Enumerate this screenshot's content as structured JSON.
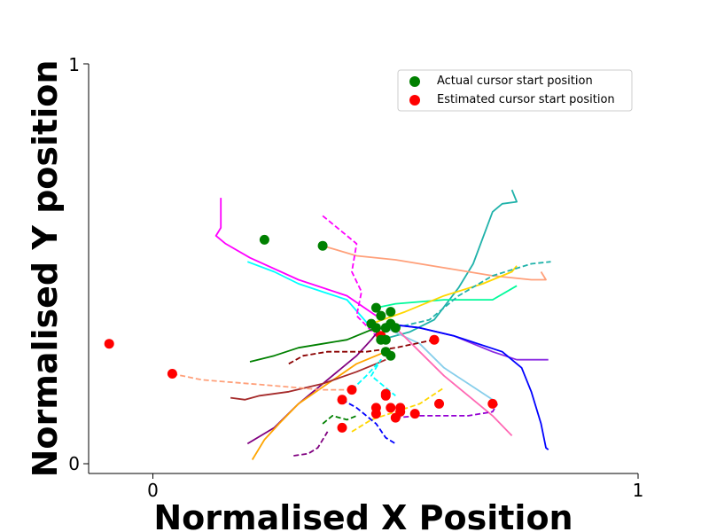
{
  "chart_data": {
    "type": "line",
    "title": "",
    "xlabel": "Normalised X Position",
    "ylabel": "Normalised Y position",
    "xlim": [
      -0.13,
      1
    ],
    "ylim": [
      -0.025,
      1
    ],
    "xticks": [
      "0",
      "1"
    ],
    "yticks": [
      "0",
      "1"
    ],
    "grid": false,
    "legend": {
      "placement": "top-right",
      "entries": [
        {
          "label": "Actual cursor start position",
          "color": "#008000"
        },
        {
          "label": "Estimated cursor start position",
          "color": "#ff0000"
        }
      ]
    },
    "actual_points": [
      [
        0.23,
        0.56
      ],
      [
        0.35,
        0.545
      ],
      [
        0.46,
        0.39
      ],
      [
        0.47,
        0.37
      ],
      [
        0.45,
        0.35
      ],
      [
        0.46,
        0.34
      ],
      [
        0.48,
        0.34
      ],
      [
        0.49,
        0.38
      ],
      [
        0.49,
        0.35
      ],
      [
        0.5,
        0.34
      ],
      [
        0.47,
        0.31
      ],
      [
        0.48,
        0.31
      ],
      [
        0.48,
        0.28
      ],
      [
        0.49,
        0.27
      ]
    ],
    "estimated_points": [
      [
        -0.09,
        0.3
      ],
      [
        0.04,
        0.225
      ],
      [
        0.41,
        0.185
      ],
      [
        0.39,
        0.16
      ],
      [
        0.48,
        0.175
      ],
      [
        0.46,
        0.14
      ],
      [
        0.49,
        0.14
      ],
      [
        0.51,
        0.14
      ],
      [
        0.51,
        0.13
      ],
      [
        0.46,
        0.125
      ],
      [
        0.5,
        0.115
      ],
      [
        0.54,
        0.125
      ],
      [
        0.59,
        0.15
      ],
      [
        0.7,
        0.15
      ],
      [
        0.39,
        0.09
      ],
      [
        0.58,
        0.31
      ],
      [
        0.48,
        0.17
      ],
      [
        0.47,
        0.32
      ]
    ],
    "series": [
      {
        "color": "#20b2aa",
        "style": "solid",
        "points": [
          [
            0.47,
            0.31
          ],
          [
            0.53,
            0.33
          ],
          [
            0.58,
            0.36
          ],
          [
            0.63,
            0.44
          ],
          [
            0.66,
            0.5
          ],
          [
            0.7,
            0.63
          ],
          [
            0.72,
            0.65
          ],
          [
            0.75,
            0.655
          ],
          [
            0.74,
            0.685
          ]
        ]
      },
      {
        "color": "#ffa07a",
        "style": "solid",
        "points": [
          [
            0.35,
            0.545
          ],
          [
            0.42,
            0.52
          ],
          [
            0.5,
            0.51
          ],
          [
            0.6,
            0.49
          ],
          [
            0.7,
            0.47
          ],
          [
            0.78,
            0.46
          ],
          [
            0.81,
            0.46
          ],
          [
            0.8,
            0.48
          ]
        ]
      },
      {
        "color": "#00fa9a",
        "style": "solid",
        "points": [
          [
            0.46,
            0.39
          ],
          [
            0.5,
            0.4
          ],
          [
            0.6,
            0.41
          ],
          [
            0.7,
            0.41
          ],
          [
            0.75,
            0.445
          ]
        ]
      },
      {
        "color": "#ffd700",
        "style": "solid",
        "points": [
          [
            0.45,
            0.35
          ],
          [
            0.52,
            0.38
          ],
          [
            0.6,
            0.42
          ],
          [
            0.68,
            0.45
          ],
          [
            0.74,
            0.48
          ],
          [
            0.75,
            0.495
          ]
        ]
      },
      {
        "color": "#20b2aa",
        "style": "dashed",
        "points": [
          [
            0.5,
            0.34
          ],
          [
            0.57,
            0.36
          ],
          [
            0.63,
            0.42
          ],
          [
            0.7,
            0.47
          ],
          [
            0.78,
            0.5
          ],
          [
            0.82,
            0.505
          ]
        ]
      },
      {
        "color": "#ff00ff",
        "style": "solid",
        "points": [
          [
            0.14,
            0.665
          ],
          [
            0.14,
            0.64
          ],
          [
            0.14,
            0.59
          ],
          [
            0.13,
            0.57
          ],
          [
            0.15,
            0.55
          ],
          [
            0.2,
            0.515
          ],
          [
            0.3,
            0.46
          ],
          [
            0.4,
            0.42
          ],
          [
            0.46,
            0.37
          ]
        ]
      },
      {
        "color": "#00ffff",
        "style": "solid",
        "points": [
          [
            0.195,
            0.505
          ],
          [
            0.25,
            0.48
          ],
          [
            0.3,
            0.45
          ],
          [
            0.35,
            0.43
          ],
          [
            0.4,
            0.41
          ],
          [
            0.45,
            0.34
          ]
        ]
      },
      {
        "color": "#ff00ff",
        "style": "dashed",
        "points": [
          [
            0.35,
            0.62
          ],
          [
            0.37,
            0.6
          ],
          [
            0.4,
            0.57
          ],
          [
            0.42,
            0.55
          ],
          [
            0.41,
            0.48
          ],
          [
            0.43,
            0.43
          ],
          [
            0.42,
            0.37
          ],
          [
            0.46,
            0.32
          ],
          [
            0.47,
            0.32
          ]
        ]
      },
      {
        "color": "#8a2be2",
        "style": "solid",
        "points": [
          [
            0.48,
            0.35
          ],
          [
            0.55,
            0.34
          ],
          [
            0.62,
            0.32
          ],
          [
            0.7,
            0.28
          ],
          [
            0.75,
            0.26
          ],
          [
            0.8,
            0.26
          ],
          [
            0.815,
            0.26
          ]
        ]
      },
      {
        "color": "#0000ff",
        "style": "solid",
        "points": [
          [
            0.48,
            0.35
          ],
          [
            0.55,
            0.34
          ],
          [
            0.62,
            0.32
          ],
          [
            0.72,
            0.28
          ],
          [
            0.76,
            0.24
          ],
          [
            0.78,
            0.18
          ],
          [
            0.8,
            0.1
          ],
          [
            0.81,
            0.04
          ],
          [
            0.815,
            0.035
          ]
        ]
      },
      {
        "color": "#87ceeb",
        "style": "solid",
        "points": [
          [
            0.48,
            0.34
          ],
          [
            0.55,
            0.3
          ],
          [
            0.6,
            0.24
          ],
          [
            0.65,
            0.2
          ],
          [
            0.7,
            0.16
          ],
          [
            0.71,
            0.145
          ]
        ]
      },
      {
        "color": "#ff69b4",
        "style": "solid",
        "points": [
          [
            0.5,
            0.34
          ],
          [
            0.55,
            0.28
          ],
          [
            0.6,
            0.22
          ],
          [
            0.65,
            0.17
          ],
          [
            0.7,
            0.12
          ],
          [
            0.74,
            0.07
          ]
        ]
      },
      {
        "color": "#008000",
        "style": "solid",
        "points": [
          [
            0.2,
            0.255
          ],
          [
            0.25,
            0.27
          ],
          [
            0.3,
            0.29
          ],
          [
            0.35,
            0.3
          ],
          [
            0.4,
            0.31
          ],
          [
            0.46,
            0.34
          ]
        ]
      },
      {
        "color": "#800080",
        "style": "solid",
        "points": [
          [
            0.195,
            0.05
          ],
          [
            0.25,
            0.09
          ],
          [
            0.3,
            0.15
          ],
          [
            0.36,
            0.21
          ],
          [
            0.42,
            0.27
          ],
          [
            0.45,
            0.31
          ],
          [
            0.47,
            0.34
          ]
        ]
      },
      {
        "color": "#ffa500",
        "style": "solid",
        "points": [
          [
            0.205,
            0.01
          ],
          [
            0.23,
            0.06
          ],
          [
            0.26,
            0.1
          ],
          [
            0.3,
            0.15
          ],
          [
            0.36,
            0.2
          ],
          [
            0.42,
            0.25
          ],
          [
            0.46,
            0.27
          ],
          [
            0.48,
            0.28
          ]
        ]
      },
      {
        "color": "#a52a2a",
        "style": "solid",
        "points": [
          [
            0.16,
            0.165
          ],
          [
            0.19,
            0.16
          ],
          [
            0.22,
            0.17
          ],
          [
            0.28,
            0.18
          ],
          [
            0.35,
            0.2
          ],
          [
            0.42,
            0.23
          ],
          [
            0.46,
            0.25
          ],
          [
            0.48,
            0.26
          ]
        ]
      },
      {
        "color": "#8b0000",
        "style": "dashed",
        "points": [
          [
            0.28,
            0.25
          ],
          [
            0.31,
            0.27
          ],
          [
            0.36,
            0.28
          ],
          [
            0.44,
            0.28
          ],
          [
            0.5,
            0.29
          ],
          [
            0.58,
            0.31
          ]
        ]
      },
      {
        "color": "#ffa07a",
        "style": "dashed",
        "points": [
          [
            0.04,
            0.225
          ],
          [
            0.1,
            0.21
          ],
          [
            0.2,
            0.2
          ],
          [
            0.3,
            0.19
          ],
          [
            0.35,
            0.185
          ],
          [
            0.4,
            0.185
          ],
          [
            0.41,
            0.185
          ]
        ]
      },
      {
        "color": "#00ffff",
        "style": "dashed",
        "points": [
          [
            0.41,
            0.185
          ],
          [
            0.44,
            0.22
          ],
          [
            0.47,
            0.26
          ],
          [
            0.45,
            0.22
          ],
          [
            0.5,
            0.17
          ]
        ]
      },
      {
        "color": "#ffd700",
        "style": "dashed",
        "points": [
          [
            0.41,
            0.08
          ],
          [
            0.45,
            0.11
          ],
          [
            0.5,
            0.13
          ],
          [
            0.55,
            0.15
          ],
          [
            0.6,
            0.19
          ]
        ]
      },
      {
        "color": "#0000ff",
        "style": "dashed",
        "points": [
          [
            0.39,
            0.16
          ],
          [
            0.42,
            0.14
          ],
          [
            0.46,
            0.1
          ],
          [
            0.48,
            0.065
          ],
          [
            0.5,
            0.05
          ]
        ]
      },
      {
        "color": "#9400d3",
        "style": "dashed",
        "points": [
          [
            0.5,
            0.115
          ],
          [
            0.55,
            0.12
          ],
          [
            0.6,
            0.12
          ],
          [
            0.65,
            0.12
          ],
          [
            0.7,
            0.13
          ],
          [
            0.71,
            0.15
          ]
        ]
      },
      {
        "color": "#800080",
        "style": "dashed",
        "points": [
          [
            0.29,
            0.02
          ],
          [
            0.32,
            0.025
          ],
          [
            0.34,
            0.04
          ],
          [
            0.36,
            0.08
          ]
        ]
      },
      {
        "color": "#008000",
        "style": "dashed",
        "points": [
          [
            0.35,
            0.1
          ],
          [
            0.37,
            0.12
          ],
          [
            0.4,
            0.11
          ],
          [
            0.42,
            0.12
          ]
        ]
      }
    ]
  }
}
